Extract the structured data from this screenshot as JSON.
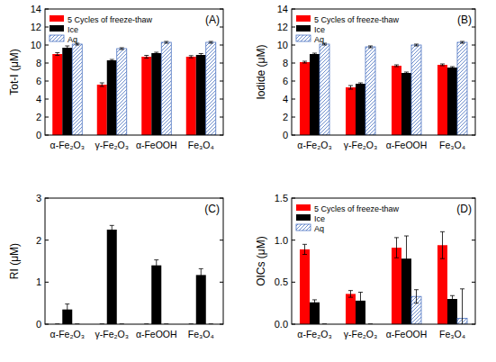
{
  "chart_data": [
    {
      "type": "bar",
      "y_label": "Tot-I (μM)",
      "annotation": "(A)",
      "categories": [
        "α-Fe₂O₃",
        "γ-Fe₂O₃",
        "α-FeOOH",
        "Fe₃O₄"
      ],
      "series": [
        {
          "name": "5 Cycles of freeze-thaw",
          "color": "#ff0000",
          "values": [
            9.0,
            5.6,
            8.7,
            8.7
          ],
          "errors": [
            0.15,
            0.2,
            0.15,
            0.12
          ]
        },
        {
          "name": "Ice",
          "color": "#000000",
          "values": [
            9.7,
            8.3,
            9.1,
            8.9
          ],
          "errors": [
            0.2,
            0.1,
            0.1,
            0.15
          ]
        },
        {
          "name": "Aq",
          "color": "#4a72c0",
          "values": [
            10.1,
            9.6,
            10.3,
            10.3
          ],
          "errors": [
            0.1,
            0.1,
            0.1,
            0.1
          ]
        }
      ],
      "ylim": [
        0,
        14
      ],
      "yticks": [
        0,
        2,
        4,
        6,
        8,
        10,
        12,
        14
      ],
      "legend": "upper left"
    },
    {
      "type": "bar",
      "y_label": "Iodide (μM)",
      "annotation": "(B)",
      "categories": [
        "α-Fe₂O₃",
        "γ-Fe₂O₃",
        "α-FeOOH",
        "Fe₃O₄"
      ],
      "series": [
        {
          "name": "5 Cycles of freeze-thaw",
          "color": "#ff0000",
          "values": [
            8.1,
            5.3,
            7.7,
            7.8
          ],
          "errors": [
            0.1,
            0.2,
            0.1,
            0.1
          ]
        },
        {
          "name": "Ice",
          "color": "#000000",
          "values": [
            9.0,
            5.7,
            6.9,
            7.5
          ],
          "errors": [
            0.1,
            0.1,
            0.1,
            0.1
          ]
        },
        {
          "name": "Aq",
          "color": "#4a72c0",
          "values": [
            10.1,
            9.8,
            10.0,
            10.3
          ],
          "errors": [
            0.1,
            0.1,
            0.1,
            0.1
          ]
        }
      ],
      "ylim": [
        0,
        14
      ],
      "yticks": [
        0,
        2,
        4,
        6,
        8,
        10,
        12,
        14
      ],
      "legend": "upper left"
    },
    {
      "type": "bar",
      "y_label": "RI (μM)",
      "annotation": "(C)",
      "categories": [
        "α-Fe₂O₃",
        "γ-Fe₂O₃",
        "α-FeOOH",
        "Fe₃O₄"
      ],
      "series": [
        {
          "color": "#ff0000",
          "values": [
            0,
            0,
            0,
            0
          ],
          "errors": [
            0,
            0,
            0,
            0
          ]
        },
        {
          "color": "#000000",
          "values": [
            0.35,
            2.25,
            1.4,
            1.17
          ],
          "errors": [
            0.13,
            0.1,
            0.13,
            0.15
          ]
        },
        {
          "color": "#4a72c0",
          "values": [
            0,
            0,
            0,
            0
          ],
          "errors": [
            0,
            0,
            0,
            0
          ]
        }
      ],
      "ylim": [
        0,
        3
      ],
      "yticks": [
        0,
        1,
        2,
        3
      ]
    },
    {
      "type": "bar",
      "y_label": "OICs (μM)",
      "annotation": "(D)",
      "categories": [
        "α-Fe₂O₃",
        "γ-Fe₂O₃",
        "α-FeOOH",
        "Fe₃O₄"
      ],
      "series": [
        {
          "name": "5 Cycles of freeze-thaw",
          "color": "#ff0000",
          "values": [
            0.89,
            0.36,
            0.91,
            0.94
          ],
          "errors": [
            0.06,
            0.04,
            0.12,
            0.16
          ]
        },
        {
          "name": "Ice",
          "color": "#000000",
          "values": [
            0.26,
            0.28,
            0.78,
            0.3
          ],
          "errors": [
            0.03,
            0.1,
            0.27,
            0.04
          ]
        },
        {
          "name": "Aq",
          "color": "#4a72c0",
          "values": [
            0,
            0,
            0.33,
            0.07
          ],
          "errors": [
            0,
            0,
            0.08,
            0.35
          ]
        }
      ],
      "ylim": [
        0,
        1.5
      ],
      "yticks": [
        {
          "value": 0,
          "label": "0.0"
        },
        {
          "value": 0.5,
          "label": "0.5"
        },
        {
          "value": 1,
          "label": "1.0"
        },
        {
          "value": 1.5,
          "label": "1.5"
        }
      ],
      "legend": "upper left"
    }
  ]
}
